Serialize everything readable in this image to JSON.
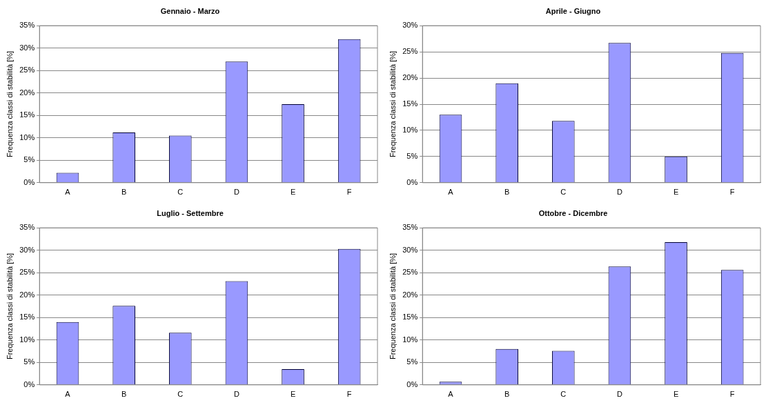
{
  "chart_data": [
    {
      "type": "bar",
      "title": "Gennaio - Marzo",
      "ylabel": "Frequenza classi di stabilità [%]",
      "categories": [
        "A",
        "B",
        "C",
        "D",
        "E",
        "F"
      ],
      "values": [
        2.2,
        11.2,
        10.5,
        27,
        17.5,
        32
      ],
      "color": "#9999ff",
      "ylim": [
        0,
        35
      ],
      "yticks": [
        {
          "value": 0,
          "label": "0%"
        },
        {
          "value": 5,
          "label": "5%"
        },
        {
          "value": 10,
          "label": "10%"
        },
        {
          "value": 15,
          "label": "15%"
        },
        {
          "value": 20,
          "label": "20%"
        },
        {
          "value": 25,
          "label": "25%"
        },
        {
          "value": 30,
          "label": "30%"
        },
        {
          "value": 35,
          "label": "35%"
        }
      ],
      "grid": "y"
    },
    {
      "type": "bar",
      "title": "Aprile - Giugno",
      "ylabel": "Frequenza classi di stabilità [%]",
      "categories": [
        "A",
        "B",
        "C",
        "D",
        "E",
        "F"
      ],
      "values": [
        13,
        19,
        11.8,
        26.7,
        5,
        24.8
      ],
      "color": "#9999ff",
      "ylim": [
        0,
        30
      ],
      "yticks": [
        {
          "value": 0,
          "label": "0%"
        },
        {
          "value": 5,
          "label": "5%"
        },
        {
          "value": 10,
          "label": "10%"
        },
        {
          "value": 15,
          "label": "15%"
        },
        {
          "value": 20,
          "label": "20%"
        },
        {
          "value": 25,
          "label": "25%"
        },
        {
          "value": 30,
          "label": "30%"
        }
      ],
      "grid": "y"
    },
    {
      "type": "bar",
      "title": "Luglio - Settembre",
      "ylabel": "Frequenza classi di stabilità [%]",
      "categories": [
        "A",
        "B",
        "C",
        "D",
        "E",
        "F"
      ],
      "values": [
        14,
        17.6,
        11.6,
        23.1,
        3.5,
        30.3
      ],
      "color": "#9999ff",
      "ylim": [
        0,
        35
      ],
      "yticks": [
        {
          "value": 0,
          "label": "0%"
        },
        {
          "value": 5,
          "label": "5%"
        },
        {
          "value": 10,
          "label": "10%"
        },
        {
          "value": 15,
          "label": "15%"
        },
        {
          "value": 20,
          "label": "20%"
        },
        {
          "value": 25,
          "label": "25%"
        },
        {
          "value": 30,
          "label": "30%"
        },
        {
          "value": 35,
          "label": "35%"
        }
      ],
      "grid": "y"
    },
    {
      "type": "bar",
      "title": "Ottobre - Dicembre",
      "ylabel": "Frequenza classi di stabilità [%]",
      "categories": [
        "A",
        "B",
        "C",
        "D",
        "E",
        "F"
      ],
      "values": [
        0.7,
        8,
        7.6,
        26.4,
        31.8,
        25.6
      ],
      "color": "#9999ff",
      "ylim": [
        0,
        35
      ],
      "yticks": [
        {
          "value": 0,
          "label": "0%"
        },
        {
          "value": 5,
          "label": "5%"
        },
        {
          "value": 10,
          "label": "10%"
        },
        {
          "value": 15,
          "label": "15%"
        },
        {
          "value": 20,
          "label": "20%"
        },
        {
          "value": 25,
          "label": "25%"
        },
        {
          "value": 30,
          "label": "30%"
        },
        {
          "value": 35,
          "label": "35%"
        }
      ],
      "grid": "y"
    }
  ]
}
